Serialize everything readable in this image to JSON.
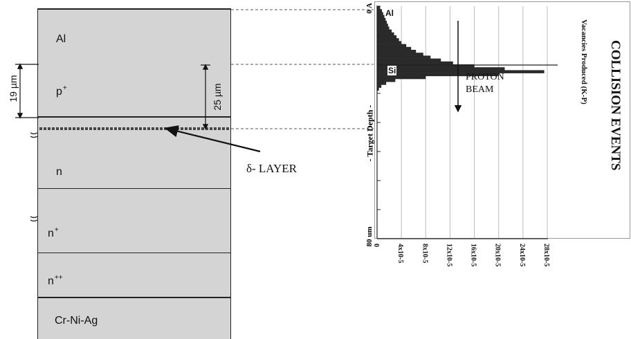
{
  "layers": [
    {
      "name": "Al",
      "sup": ""
    },
    {
      "name": "p",
      "sup": "+"
    },
    {
      "name": "n",
      "sup": ""
    },
    {
      "name": "n",
      "sup": "+"
    },
    {
      "name": "n",
      "sup": "++"
    },
    {
      "name": "Cr-Ni-Ag",
      "sup": ""
    }
  ],
  "dimensions": {
    "dim_19": "19 µm",
    "dim_25": "25 µm"
  },
  "delta_layer_label": "δ- LAYER",
  "plot": {
    "title": "COLLISION EVENTS",
    "subtitle": "Vacancies Produced (K-P)",
    "axis_label": "- Target Depth -",
    "depth_top": "0 A",
    "depth_bottom": "80 um",
    "region_al": "Al",
    "region_si": "Si",
    "beam_label_1": "PROTON",
    "beam_label_2": "BEAM",
    "ticks": [
      "0",
      "4x10-5",
      "8x10-5",
      "12x10-5",
      "16x10-5",
      "20x10-5",
      "24x10-5",
      "28x10-5"
    ]
  },
  "chart_data": {
    "type": "bar",
    "title": "COLLISION EVENTS",
    "xlabel": "Vacancies Produced (K-P)",
    "ylabel": "- Target Depth -",
    "ylim": [
      0,
      80
    ],
    "xlim": [
      0,
      28
    ],
    "x_unit": "x10^-5",
    "y_unit": "um",
    "depth_um": [
      0,
      1,
      2,
      3,
      4,
      5,
      6,
      7,
      8,
      9,
      10,
      11,
      12,
      13,
      14,
      15,
      16,
      17,
      18,
      19,
      20,
      21,
      22,
      23,
      24,
      25,
      26,
      27,
      28
    ],
    "values": [
      0.5,
      0.8,
      1.0,
      1.2,
      1.4,
      1.6,
      1.8,
      2.0,
      2.4,
      2.8,
      3.2,
      3.6,
      4.0,
      4.8,
      5.6,
      6.4,
      7.6,
      8.8,
      10.5,
      12.5,
      16.0,
      21.0,
      27.5,
      20.0,
      8.0,
      3.0,
      1.5,
      0.7,
      0.3
    ],
    "annotations": [
      "Al",
      "Si",
      "PROTON BEAM"
    ]
  }
}
